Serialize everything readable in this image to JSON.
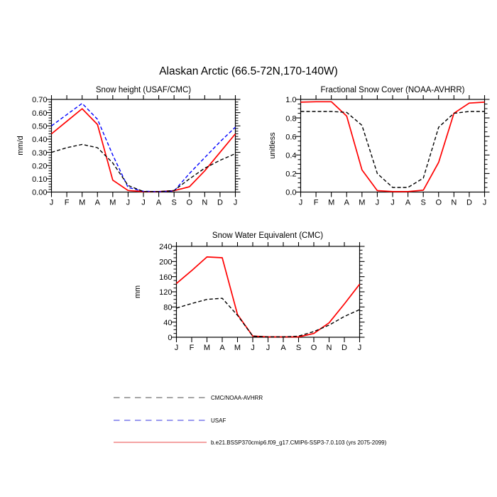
{
  "figure": {
    "title": "Alaskan Arctic (66.5-72N,170-140W)"
  },
  "chart_data": [
    {
      "id": "snow-height",
      "type": "line",
      "title": "Snow height (USAF/CMC)",
      "ylabel": "mm/d",
      "xlabel": "",
      "categories": [
        "J",
        "F",
        "M",
        "A",
        "M",
        "J",
        "J",
        "A",
        "S",
        "O",
        "N",
        "D",
        "J"
      ],
      "ylim": [
        0,
        0.7
      ],
      "ytick_values": [
        0.0,
        0.1,
        0.2,
        0.3,
        0.4,
        0.5,
        0.6,
        0.7
      ],
      "ytick_labels": [
        "0.00",
        "0.10",
        "0.20",
        "0.30",
        "0.40",
        "0.50",
        "0.60",
        "0.70"
      ],
      "minor_step": 0.02,
      "grid": false,
      "series": [
        {
          "name": "b.e21.BSSP370cmip6.f09_g17.CMIP6-SSP3-7.0.103 (yrs 2075-2099)",
          "color": "#ff0000",
          "dash": "solid",
          "values": [
            0.44,
            0.535,
            0.63,
            0.51,
            0.09,
            0.012,
            0.003,
            0.003,
            0.01,
            0.04,
            0.16,
            0.3,
            0.44
          ]
        },
        {
          "name": "USAF",
          "color": "#0000ff",
          "dash": "dashed",
          "values": [
            0.5,
            0.585,
            0.67,
            0.55,
            0.28,
            0.035,
            0.006,
            0.003,
            0.008,
            0.14,
            0.26,
            0.38,
            0.49
          ]
        },
        {
          "name": "CMC/NOAA-AVHRR",
          "color": "#000000",
          "dash": "dashed",
          "values": [
            0.3,
            0.335,
            0.36,
            0.335,
            0.22,
            0.05,
            0.004,
            0.003,
            0.012,
            0.1,
            0.18,
            0.24,
            0.29
          ]
        }
      ]
    },
    {
      "id": "fractional-snow-cover",
      "type": "line",
      "title": "Fractional Snow Cover (NOAA-AVHRR)",
      "ylabel": "unitless",
      "xlabel": "",
      "categories": [
        "J",
        "F",
        "M",
        "A",
        "M",
        "J",
        "J",
        "A",
        "S",
        "O",
        "N",
        "D",
        "J"
      ],
      "ylim": [
        0,
        1.0
      ],
      "ytick_values": [
        0.0,
        0.2,
        0.4,
        0.6,
        0.8,
        1.0
      ],
      "ytick_labels": [
        "0.0",
        "0.2",
        "0.4",
        "0.6",
        "0.8",
        "1.0"
      ],
      "minor_step": 0.05,
      "grid": false,
      "series": [
        {
          "name": "b.e21.BSSP370cmip6.f09_g17.CMIP6-SSP3-7.0.103 (yrs 2075-2099)",
          "color": "#ff0000",
          "dash": "solid",
          "values": [
            0.97,
            0.975,
            0.975,
            0.82,
            0.24,
            0.015,
            0.005,
            0.005,
            0.02,
            0.32,
            0.85,
            0.96,
            0.97
          ]
        },
        {
          "name": "CMC/NOAA-AVHRR",
          "color": "#000000",
          "dash": "dashed",
          "values": [
            0.87,
            0.87,
            0.87,
            0.86,
            0.72,
            0.2,
            0.05,
            0.05,
            0.15,
            0.7,
            0.85,
            0.87,
            0.87
          ]
        }
      ]
    },
    {
      "id": "snow-water-equivalent",
      "type": "line",
      "title": "Snow Water Equivalent (CMC)",
      "ylabel": "mm",
      "xlabel": "",
      "categories": [
        "J",
        "F",
        "M",
        "A",
        "M",
        "J",
        "J",
        "A",
        "S",
        "O",
        "N",
        "D",
        "J"
      ],
      "ylim": [
        0,
        240
      ],
      "ytick_values": [
        0,
        40,
        80,
        120,
        160,
        200,
        240
      ],
      "ytick_labels": [
        "0",
        "40",
        "80",
        "120",
        "160",
        "200",
        "240"
      ],
      "minor_step": 10,
      "grid": false,
      "series": [
        {
          "name": "b.e21.BSSP370cmip6.f09_g17.CMIP6-SSP3-7.0.103 (yrs 2075-2099)",
          "color": "#ff0000",
          "dash": "solid",
          "values": [
            142,
            176,
            212,
            210,
            60,
            3,
            1,
            1,
            1,
            10,
            38,
            88,
            140
          ]
        },
        {
          "name": "CMC/NOAA-AVHRR",
          "color": "#000000",
          "dash": "dashed",
          "values": [
            77,
            89,
            100,
            103,
            58,
            3,
            1,
            1,
            3,
            15,
            32,
            55,
            73
          ]
        }
      ]
    }
  ],
  "legend": {
    "items": [
      {
        "label": "CMC/NOAA-AVHRR",
        "color": "#a6a6a6",
        "dash": "dashed"
      },
      {
        "label": "USAF",
        "color": "#9a9af0",
        "dash": "dashed"
      },
      {
        "label": "b.e21.BSSP370cmip6.f09_g17.CMIP6-SSP3-7.0.103 (yrs 2075-2099)",
        "color": "#f4a3a3",
        "dash": "solid"
      }
    ]
  }
}
